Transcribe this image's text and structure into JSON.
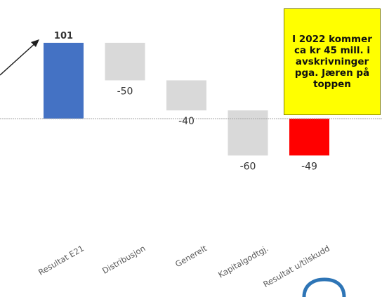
{
  "chart_data": {
    "type": "waterfall",
    "categories": [
      "Resultat E21",
      "Distribusjon",
      "Generelt",
      "Kapitalgodtgj.",
      "Resultat u/tilskudd"
    ],
    "values": [
      101,
      -50,
      -40,
      -60,
      -49
    ],
    "labels": [
      "101",
      "-50",
      "-40",
      "-60",
      "-49"
    ],
    "kinds": [
      "total",
      "delta",
      "delta",
      "delta",
      "total"
    ],
    "colors": [
      "#4472c4",
      "#d9d9d9",
      "#d9d9d9",
      "#d9d9d9",
      "#ff0000"
    ],
    "baseline": 0
  },
  "note": {
    "text": "I 2022 kommer\nca kr 45 mill. i\navskrivninger\npga. Jæren på\ntoppen",
    "background": "#ffff00"
  }
}
